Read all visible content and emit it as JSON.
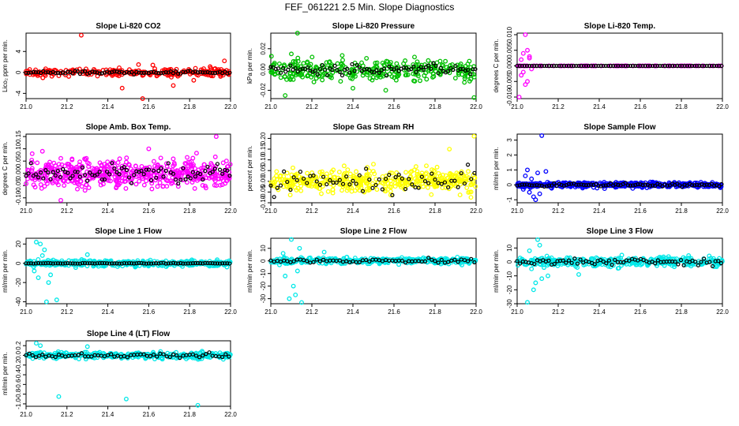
{
  "title": "FEF_061221  2.5 Min. Slope Diagnostics",
  "chart_data": [
    {
      "type": "scatter",
      "title": "Slope Li-820 CO2",
      "ylabel": "Lico₂ ppm per min.",
      "color": "#ff0000",
      "xlim": [
        21.0,
        22.0
      ],
      "ylim": [
        -5,
        7.5
      ],
      "x_ticks": [
        21.0,
        21.2,
        21.4,
        21.6,
        21.8,
        22.0
      ],
      "y_ticks": [
        -4,
        0,
        4
      ],
      "x_tick_labels": [
        "21.0",
        "21.2",
        "21.4",
        "21.6",
        "21.8",
        "22.0"
      ],
      "y_tick_labels": [
        "-4",
        "0",
        "4"
      ],
      "spread": 0.6,
      "black_spread": 0.25,
      "black_step": 0.012,
      "count": 260,
      "seed": 3,
      "outliers": [
        [
          21.27,
          7.1
        ],
        [
          21.47,
          -3
        ],
        [
          21.57,
          -5
        ],
        [
          21.55,
          1.5
        ],
        [
          21.62,
          1.4
        ],
        [
          21.72,
          -2.5
        ],
        [
          21.97,
          2.2
        ],
        [
          21.82,
          -1.5
        ],
        [
          21.9,
          1.1
        ]
      ]
    },
    {
      "type": "scatter",
      "title": "Slope Li-820 Pressure",
      "ylabel": "kPa per min.",
      "color": "#00c000",
      "xlim": [
        21.0,
        22.0
      ],
      "ylim": [
        -0.028,
        0.035
      ],
      "x_ticks": [
        21.0,
        21.2,
        21.4,
        21.6,
        21.8,
        22.0
      ],
      "y_ticks": [
        -0.02,
        0.0,
        0.02
      ],
      "x_tick_labels": [
        "21.0",
        "21.2",
        "21.4",
        "21.6",
        "21.8",
        "22.0"
      ],
      "y_tick_labels": [
        "-0.02",
        "0.00",
        "0.02"
      ],
      "spread": 0.008,
      "black_spread": 0.004,
      "black_step": 0.012,
      "count": 320,
      "seed": 7,
      "outliers": [
        [
          21.13,
          0.035
        ],
        [
          21.21,
          -0.012
        ],
        [
          21.4,
          -0.018
        ],
        [
          21.1,
          0.015
        ],
        [
          21.56,
          -0.02
        ],
        [
          21.07,
          -0.025
        ],
        [
          21.99,
          -0.027
        ],
        [
          21.7,
          0.012
        ]
      ]
    },
    {
      "type": "scatter",
      "title": "Slope Li-820 Temp.",
      "ylabel": "degrees C per min.",
      "color": "#ff00ff",
      "xlim": [
        21.0,
        22.0
      ],
      "ylim": [
        -0.0105,
        0.0105
      ],
      "x_ticks": [
        21.0,
        21.2,
        21.4,
        21.6,
        21.8,
        22.0
      ],
      "y_ticks": [
        -0.01,
        -0.005,
        0.0,
        0.005,
        0.01
      ],
      "x_tick_labels": [
        "21.0",
        "21.2",
        "21.4",
        "21.6",
        "21.8",
        "22.0"
      ],
      "y_tick_labels": [
        "-0.010",
        "-0.005",
        "0.000",
        "0.005",
        "0.010"
      ],
      "spread": 0.0,
      "black_spread": 0.0,
      "black_step": 0.012,
      "count": 80,
      "seed": 11,
      "outliers": [
        [
          21.02,
          -0.003
        ],
        [
          21.03,
          0.004
        ],
        [
          21.04,
          0.01
        ],
        [
          21.01,
          -0.01
        ],
        [
          21.05,
          -0.005
        ],
        [
          21.06,
          0.003
        ],
        [
          21.03,
          -0.002
        ],
        [
          21.04,
          -0.006
        ],
        [
          21.02,
          0.002
        ],
        [
          21.05,
          0.005
        ],
        [
          21.06,
          0.0025
        ],
        [
          21.07,
          -0.001
        ]
      ]
    },
    {
      "type": "scatter",
      "title": "Slope Amb. Box Temp.",
      "ylabel": "degrees C per min.",
      "color": "#ff00ff",
      "xlim": [
        21.0,
        22.0
      ],
      "ylim": [
        -0.12,
        0.16
      ],
      "x_ticks": [
        21.0,
        21.2,
        21.4,
        21.6,
        21.8,
        22.0
      ],
      "y_ticks": [
        -0.1,
        -0.05,
        0.0,
        0.05,
        0.1,
        0.15
      ],
      "x_tick_labels": [
        "21.0",
        "21.2",
        "21.4",
        "21.6",
        "21.8",
        "22.0"
      ],
      "y_tick_labels": [
        "-0.10",
        "-0.05",
        "0.00",
        "0.05",
        "0.10",
        "0.15"
      ],
      "spread": 0.045,
      "black_spread": 0.03,
      "black_step": 0.012,
      "count": 520,
      "seed": 19,
      "outliers": [
        [
          21.03,
          0.08
        ],
        [
          21.93,
          0.15
        ],
        [
          21.17,
          -0.11
        ],
        [
          21.6,
          0.1
        ],
        [
          21.08,
          0.09
        ]
      ]
    },
    {
      "type": "scatter",
      "title": "Slope Gas Stream RH",
      "ylabel": "percent per min.",
      "color": "#ffff00",
      "xlim": [
        21.0,
        22.0
      ],
      "ylim": [
        -0.1,
        0.22
      ],
      "x_ticks": [
        21.0,
        21.2,
        21.4,
        21.6,
        21.8,
        22.0
      ],
      "y_ticks": [
        -0.1,
        -0.05,
        0.0,
        0.05,
        0.1,
        0.15,
        0.2
      ],
      "x_tick_labels": [
        "21.0",
        "21.2",
        "21.4",
        "21.6",
        "21.8",
        "22.0"
      ],
      "y_tick_labels": [
        "-0.10",
        "-0.05",
        "0.00",
        "0.05",
        "0.10",
        "0.15",
        "0.20"
      ],
      "spread": 0.045,
      "black_spread": 0.05,
      "black_step": 0.016,
      "count": 420,
      "seed": 23,
      "outliers": [
        [
          21.99,
          0.21
        ],
        [
          21.87,
          0.15
        ],
        [
          21.5,
          0.08
        ]
      ]
    },
    {
      "type": "scatter",
      "title": "Slope Sample Flow",
      "ylabel": "ml/min per min.",
      "color": "#0000ff",
      "xlim": [
        21.0,
        22.0
      ],
      "ylim": [
        -1.2,
        3.4
      ],
      "x_ticks": [
        21.0,
        21.2,
        21.4,
        21.6,
        21.8,
        22.0
      ],
      "y_ticks": [
        -1,
        0,
        1,
        2,
        3
      ],
      "x_tick_labels": [
        "21.0",
        "21.2",
        "21.4",
        "21.6",
        "21.8",
        "22.0"
      ],
      "y_tick_labels": [
        "-1",
        "0",
        "1",
        "2",
        "3"
      ],
      "spread": 0.15,
      "black_spread": 0.08,
      "black_step": 0.012,
      "count": 420,
      "seed": 29,
      "outliers": [
        [
          21.12,
          3.3
        ],
        [
          21.05,
          1.0
        ],
        [
          21.08,
          -0.8
        ],
        [
          21.1,
          0.8
        ],
        [
          21.04,
          0.6
        ],
        [
          21.06,
          -0.5
        ],
        [
          21.03,
          -0.3
        ],
        [
          21.09,
          -1.0
        ],
        [
          21.07,
          0.4
        ],
        [
          21.11,
          -0.6
        ],
        [
          21.14,
          0.9
        ]
      ]
    },
    {
      "type": "scatter",
      "title": "Slope Line 1 Flow",
      "ylabel": "ml/min per min.",
      "color": "#00e8e8",
      "xlim": [
        21.0,
        22.0
      ],
      "ylim": [
        -42,
        26
      ],
      "x_ticks": [
        21.0,
        21.2,
        21.4,
        21.6,
        21.8,
        22.0
      ],
      "y_ticks": [
        -40,
        -20,
        0,
        20
      ],
      "x_tick_labels": [
        "21.0",
        "21.2",
        "21.4",
        "21.6",
        "21.8",
        "22.0"
      ],
      "y_tick_labels": [
        "-40",
        "-20",
        "0",
        "20"
      ],
      "spread": 2.5,
      "black_spread": 0.3,
      "black_step": 0.012,
      "count": 380,
      "seed": 31,
      "outliers": [
        [
          21.05,
          22
        ],
        [
          21.07,
          20
        ],
        [
          21.1,
          -40
        ],
        [
          21.06,
          -15
        ],
        [
          21.15,
          -38
        ],
        [
          21.04,
          -8
        ],
        [
          21.08,
          8
        ],
        [
          21.12,
          -12
        ],
        [
          21.09,
          14
        ],
        [
          21.11,
          -20
        ],
        [
          21.3,
          9
        ]
      ]
    },
    {
      "type": "scatter",
      "title": "Slope Line 2 Flow",
      "ylabel": "ml/min per min.",
      "color": "#00e8e8",
      "xlim": [
        21.0,
        22.0
      ],
      "ylim": [
        -34,
        18
      ],
      "x_ticks": [
        21.0,
        21.2,
        21.4,
        21.6,
        21.8,
        22.0
      ],
      "y_ticks": [
        -30,
        -20,
        -10,
        0,
        10
      ],
      "x_tick_labels": [
        "21.0",
        "21.2",
        "21.4",
        "21.6",
        "21.8",
        "22.0"
      ],
      "y_tick_labels": [
        "-30",
        "-20",
        "-10",
        "0",
        "10"
      ],
      "spread": 2.0,
      "black_spread": 1.2,
      "black_step": 0.016,
      "count": 380,
      "seed": 37,
      "outliers": [
        [
          21.1,
          17
        ],
        [
          21.12,
          -27
        ],
        [
          21.09,
          -30
        ],
        [
          21.15,
          -33
        ],
        [
          21.07,
          -12
        ],
        [
          21.11,
          -20
        ],
        [
          21.13,
          -8
        ],
        [
          21.06,
          6
        ],
        [
          21.14,
          10
        ],
        [
          21.26,
          7
        ]
      ]
    },
    {
      "type": "scatter",
      "title": "Slope Line 3 Flow",
      "ylabel": "ml/min per min.",
      "color": "#00e8e8",
      "xlim": [
        21.0,
        22.0
      ],
      "ylim": [
        -30,
        17
      ],
      "x_ticks": [
        21.0,
        21.2,
        21.4,
        21.6,
        21.8,
        22.0
      ],
      "y_ticks": [
        -30,
        -20,
        -10,
        0,
        10
      ],
      "x_tick_labels": [
        "21.0",
        "21.2",
        "21.4",
        "21.6",
        "21.8",
        "22.0"
      ],
      "y_tick_labels": [
        "-30",
        "-20",
        "-10",
        "0",
        "10"
      ],
      "spread": 2.8,
      "black_spread": 2.0,
      "black_step": 0.014,
      "count": 380,
      "seed": 41,
      "outliers": [
        [
          21.1,
          16
        ],
        [
          21.05,
          -29
        ],
        [
          21.08,
          -20
        ],
        [
          21.12,
          -12
        ],
        [
          21.06,
          8
        ],
        [
          21.09,
          -15
        ],
        [
          21.11,
          12
        ],
        [
          21.07,
          -5
        ],
        [
          21.3,
          -9
        ],
        [
          21.15,
          -10
        ]
      ]
    },
    {
      "type": "scatter",
      "title": "Slope Line 4 (LT) Flow",
      "ylabel": "ml/min per min.",
      "color": "#00e8e8",
      "xlim": [
        21.0,
        22.0
      ],
      "ylim": [
        -1.05,
        0.3
      ],
      "x_ticks": [
        21.0,
        21.2,
        21.4,
        21.6,
        21.8,
        22.0
      ],
      "y_ticks": [
        -1.0,
        -0.8,
        -0.6,
        -0.4,
        -0.2,
        0.0,
        0.2
      ],
      "x_tick_labels": [
        "21.0",
        "21.2",
        "21.4",
        "21.6",
        "21.8",
        "22.0"
      ],
      "y_tick_labels": [
        "-1.0",
        "-0.8",
        "-0.6",
        "-0.4",
        "-0.2",
        "0.0",
        "0.2"
      ],
      "spread": 0.05,
      "black_spread": 0.04,
      "black_step": 0.016,
      "count": 360,
      "seed": 43,
      "outliers": [
        [
          21.05,
          0.25
        ],
        [
          21.16,
          -0.85
        ],
        [
          21.49,
          -0.9
        ],
        [
          21.84,
          -1.03
        ],
        [
          21.3,
          0.18
        ],
        [
          21.07,
          0.2
        ]
      ]
    }
  ]
}
